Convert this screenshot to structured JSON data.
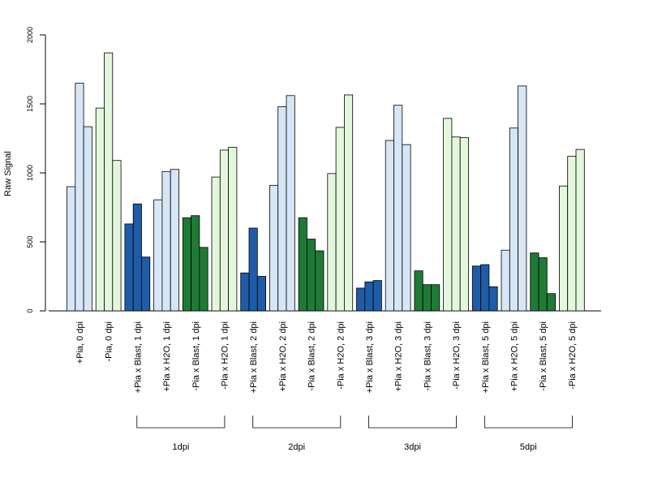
{
  "colors": {
    "light_blue": "#d6e6f6",
    "light_green": "#e2f7dc",
    "dark_blue": "#1f5ca8",
    "dark_green": "#1f7a35",
    "stroke": "#000000"
  },
  "chart_data": {
    "type": "bar",
    "title": "",
    "xlabel": "",
    "ylabel": "Raw Signal",
    "ylim": [
      0,
      2000
    ],
    "yticks": [
      0,
      500,
      1000,
      1500,
      2000
    ],
    "grid": false,
    "legend": "none",
    "categories": [
      {
        "label": "+Pia, 0 dpi",
        "color": "light_blue",
        "values": [
          900,
          1650,
          1335
        ]
      },
      {
        "label": "-Pia, 0 dpi",
        "color": "light_green",
        "values": [
          1470,
          1870,
          1090
        ]
      },
      {
        "label": "+Pia x Blast, 1 dpi",
        "color": "dark_blue",
        "values": [
          630,
          775,
          390
        ]
      },
      {
        "label": "+Pia x H2O, 1 dpi",
        "color": "light_blue",
        "values": [
          805,
          1010,
          1025
        ]
      },
      {
        "label": "-Pia x Blast, 1 dpi",
        "color": "dark_green",
        "values": [
          675,
          690,
          460
        ]
      },
      {
        "label": "-Pia x H2O, 1 dpi",
        "color": "light_green",
        "values": [
          970,
          1165,
          1185
        ]
      },
      {
        "label": "+Pia x Blast, 2 dpi",
        "color": "dark_blue",
        "values": [
          275,
          600,
          250
        ]
      },
      {
        "label": "+Pia x H2O, 2 dpi",
        "color": "light_blue",
        "values": [
          910,
          1480,
          1560
        ]
      },
      {
        "label": "-Pia x Blast, 2 dpi",
        "color": "dark_green",
        "values": [
          675,
          520,
          435
        ]
      },
      {
        "label": "-Pia x H2O, 2 dpi",
        "color": "light_green",
        "values": [
          995,
          1330,
          1565
        ]
      },
      {
        "label": "+Pia x Blast, 3 dpi",
        "color": "dark_blue",
        "values": [
          165,
          210,
          220
        ]
      },
      {
        "label": "+Pia x H2O, 3 dpi",
        "color": "light_blue",
        "values": [
          1235,
          1490,
          1205
        ]
      },
      {
        "label": "-Pia x Blast, 3 dpi",
        "color": "dark_green",
        "values": [
          290,
          190,
          190
        ]
      },
      {
        "label": "-Pia x H2O, 3 dpi",
        "color": "light_green",
        "values": [
          1395,
          1260,
          1255
        ]
      },
      {
        "label": "+Pia x Blast, 5 dpi",
        "color": "dark_blue",
        "values": [
          325,
          335,
          175
        ]
      },
      {
        "label": "+Pia x H2O, 5 dpi",
        "color": "light_blue",
        "values": [
          440,
          1325,
          1630
        ]
      },
      {
        "label": "-Pia x Blast, 5 dpi",
        "color": "dark_green",
        "values": [
          420,
          385,
          125
        ]
      },
      {
        "label": "-Pia x H2O, 5 dpi",
        "color": "light_green",
        "values": [
          905,
          1120,
          1170
        ]
      }
    ],
    "groups": [
      {
        "label": "1dpi",
        "from": 2,
        "to": 5
      },
      {
        "label": "2dpi",
        "from": 6,
        "to": 9
      },
      {
        "label": "3dpi",
        "from": 10,
        "to": 13
      },
      {
        "label": "5dpi",
        "from": 14,
        "to": 17
      }
    ]
  }
}
